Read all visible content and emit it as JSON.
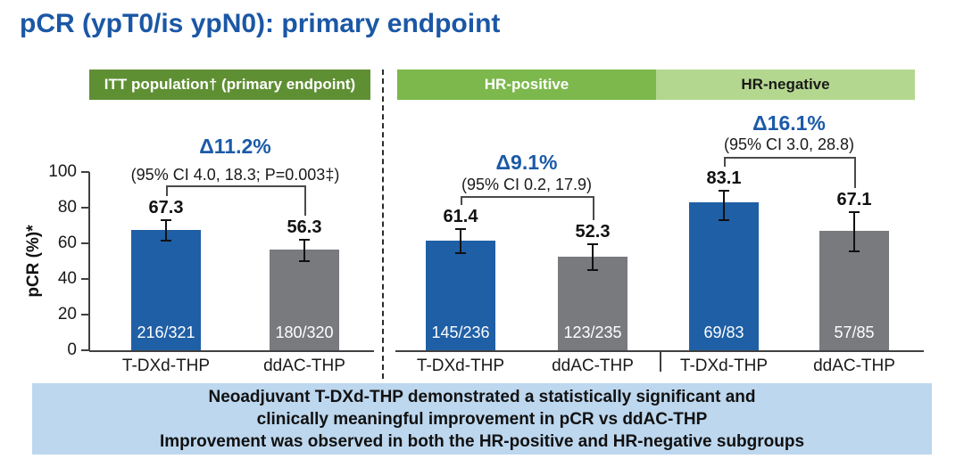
{
  "slide": {
    "title": "pCR (ypT0/is ypN0): primary endpoint"
  },
  "chart_data": {
    "type": "bar",
    "title": "pCR (ypT0/is ypN0): primary endpoint",
    "ylabel": "pCR (%)*",
    "ylim": [
      0,
      100
    ],
    "yticks": [
      0,
      20,
      40,
      60,
      80,
      100
    ],
    "grid": false,
    "series_colors": {
      "T-DXd-THP": "#1f5fa5",
      "ddAC-THP": "#797a7e"
    },
    "groups": [
      {
        "id": "itt",
        "header": "ITT population† (primary endpoint)",
        "header_color": "#5f8f33",
        "header_text_color": "#ffffff",
        "delta_label": "Δ11.2%",
        "ci_label": "(95% CI 4.0, 18.3; P=0.003‡)",
        "bars": [
          {
            "arm": "T-DXd-THP",
            "value": 67.3,
            "count": "216/321",
            "err_low": 61.9,
            "err_high": 72.4
          },
          {
            "arm": "ddAC-THP",
            "value": 56.3,
            "count": "180/320",
            "err_low": 50.6,
            "err_high": 61.7
          }
        ]
      },
      {
        "id": "hr-positive",
        "header": "HR-positive",
        "header_color": "#7cb84c",
        "header_text_color": "#ffffff",
        "delta_label": "Δ9.1%",
        "ci_label": "(95% CI 0.2, 17.9)",
        "bars": [
          {
            "arm": "T-DXd-THP",
            "value": 61.4,
            "count": "145/236",
            "err_low": 54.9,
            "err_high": 67.6
          },
          {
            "arm": "ddAC-THP",
            "value": 52.3,
            "count": "123/235",
            "err_low": 45.7,
            "err_high": 58.8
          }
        ]
      },
      {
        "id": "hr-negative",
        "header": "HR-negative",
        "header_color": "#b4d78f",
        "header_text_color": "#1a1a1a",
        "delta_label": "Δ16.1%",
        "ci_label": "(95% CI 3.0, 28.8)",
        "bars": [
          {
            "arm": "T-DXd-THP",
            "value": 83.1,
            "count": "69/83",
            "err_low": 73.3,
            "err_high": 89.0
          },
          {
            "arm": "ddAC-THP",
            "value": 67.1,
            "count": "57/85",
            "err_low": 56.0,
            "err_high": 76.9
          }
        ]
      }
    ]
  },
  "banner": {
    "bg": "#bdd7ee",
    "lines": [
      "Neoadjuvant T-DXd-THP demonstrated a statistically significant and",
      "clinically meaningful improvement in pCR vs ddAC-THP",
      "Improvement was observed in both the HR-positive and HR-negative subgroups"
    ]
  },
  "colors": {
    "title": "#1b57a5",
    "delta": "#1b5aa8",
    "axis": "#404040"
  }
}
